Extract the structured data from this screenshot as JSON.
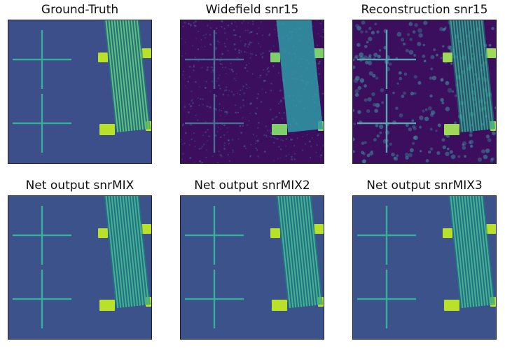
{
  "figure": {
    "colors": {
      "bg_gt": "#3c4f8b",
      "bg_noisy": "#3b0f5e",
      "bg_net": "#3b528b",
      "feature": "#2cb59a",
      "bright": "#b9e129",
      "cross": "#35b09a"
    },
    "panels": [
      {
        "title": "Ground-Truth",
        "style": "gt"
      },
      {
        "title": "Widefield snr15",
        "style": "widefield"
      },
      {
        "title": "Reconstruction snr15",
        "style": "recon"
      },
      {
        "title": "Net output snrMIX",
        "style": "net"
      },
      {
        "title": "Net output snrMIX2",
        "style": "net"
      },
      {
        "title": "Net output snrMIX3",
        "style": "net"
      }
    ]
  }
}
